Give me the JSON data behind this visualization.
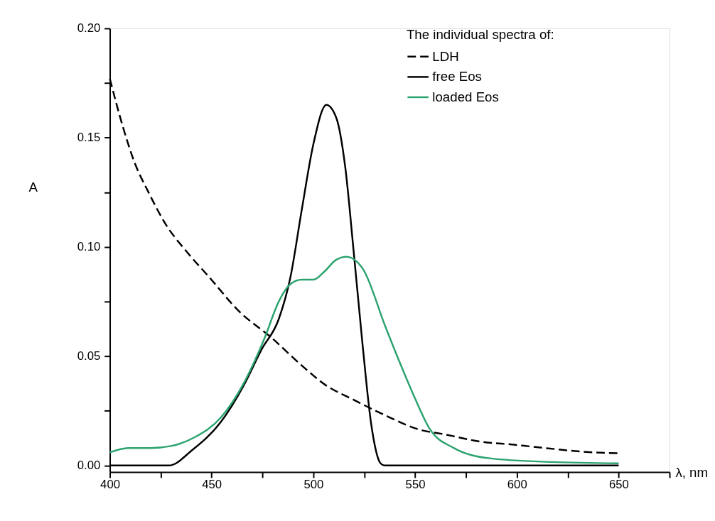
{
  "chart_data": {
    "type": "line",
    "xlabel": "λ, nm",
    "ylabel": "A",
    "legend_title": "The individual spectra of:",
    "legend": "top right",
    "grid": false,
    "xlim": [
      400,
      675
    ],
    "ylim": [
      -0.003,
      0.2
    ],
    "xticks": [
      400,
      {
        "value": 425,
        "label": null
      },
      450,
      {
        "value": 475,
        "label": null
      },
      500,
      {
        "value": 525,
        "label": null
      },
      550,
      {
        "value": 575,
        "label": null
      },
      600,
      {
        "value": 625,
        "label": null
      },
      650,
      {
        "value": 675,
        "label": null
      }
    ],
    "yticks": [
      {
        "value": 0,
        "label": "0.00"
      },
      {
        "value": 0.025,
        "label": null
      },
      {
        "value": 0.05,
        "label": "0.05"
      },
      {
        "value": 0.075,
        "label": null
      },
      {
        "value": 0.1,
        "label": "0.10"
      },
      {
        "value": 0.125,
        "label": null
      },
      {
        "value": 0.15,
        "label": "0.15"
      },
      {
        "value": 0.175,
        "label": null
      },
      {
        "value": 0.2,
        "label": "0.20"
      }
    ],
    "series": [
      {
        "name": "LDH",
        "color": "#000000",
        "line_style": "dashed",
        "x": [
          400,
          406.4,
          412,
          419,
          427.7,
          437.6,
          449,
          463,
          480,
          494,
          505.7,
          519.9,
          537.5,
          550,
          565.8,
          581.6,
          598.6,
          615.6,
          632.6,
          649.7
        ],
        "values": [
          0.177,
          0.155,
          0.139,
          0.125,
          0.11,
          0.098,
          0.086,
          0.071,
          0.058,
          0.046,
          0.037,
          0.03,
          0.022,
          0.017,
          0.014,
          0.011,
          0.0095,
          0.0078,
          0.0063,
          0.0056
        ]
      },
      {
        "name": "free Eos",
        "color": "#000000",
        "line_style": "solid",
        "x": [
          400,
          429,
          440.4,
          454.6,
          466,
          474.5,
          483,
          488.7,
          494.3,
          500,
          506.4,
          511.3,
          515.6,
          519.9,
          524,
          528.4,
          533,
          535,
          650
        ],
        "values": [
          0,
          0,
          0.007,
          0.02,
          0.037,
          0.053,
          0.067,
          0.086,
          0.117,
          0.147,
          0.165,
          0.159,
          0.137,
          0.097,
          0.057,
          0.019,
          0.001,
          0,
          0
        ]
      },
      {
        "name": "loaded Eos",
        "color": "#2ca36f",
        "line_style": "solid",
        "x": [
          400,
          409,
          420,
          430.5,
          441.8,
          454.6,
          466,
          475.9,
          483,
          488.7,
          494.3,
          500,
          505.7,
          511,
          516.3,
          524.3,
          535.2,
          542.5,
          549.8,
          557,
          569,
          586.5,
          617,
          650
        ],
        "values": [
          0.006,
          0.008,
          0.008,
          0.009,
          0.013,
          0.022,
          0.038,
          0.058,
          0.075,
          0.083,
          0.085,
          0.085,
          0.089,
          0.094,
          0.0955,
          0.09,
          0.064,
          0.047,
          0.031,
          0.017,
          0.008,
          0.0033,
          0.0016,
          0.001
        ]
      }
    ]
  }
}
